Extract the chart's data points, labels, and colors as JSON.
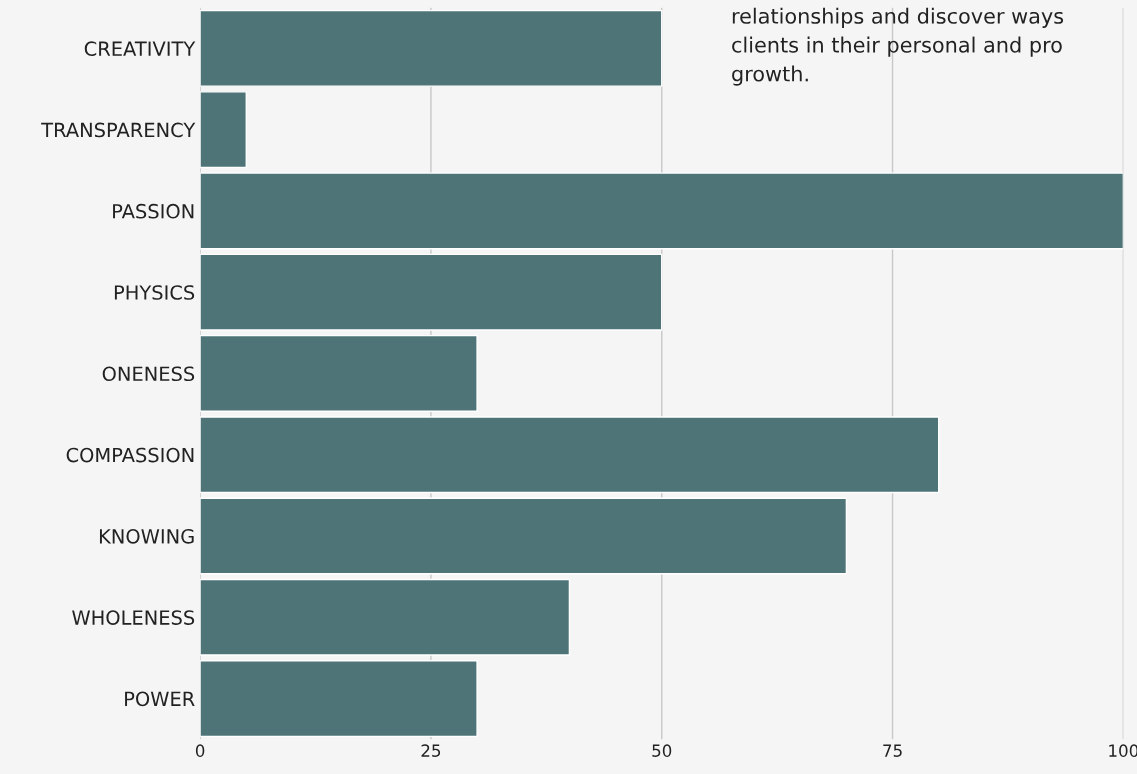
{
  "chart_data": {
    "type": "bar",
    "orientation": "horizontal",
    "categories": [
      "CREATIVITY",
      "TRANSPARENCY",
      "PASSION",
      "PHYSICS",
      "ONENESS",
      "COMPASSION",
      "KNOWING",
      "WHOLENESS",
      "POWER"
    ],
    "values": [
      50,
      5,
      100,
      50,
      30,
      80,
      70,
      40,
      30
    ],
    "color": "#4e7478",
    "xlim": [
      0,
      100
    ],
    "xticks": [
      0,
      25,
      50,
      75,
      100
    ],
    "grid": "x",
    "annotations": [
      "relationships and discover ways\nclients in their personal and pro\ngrowth."
    ]
  }
}
